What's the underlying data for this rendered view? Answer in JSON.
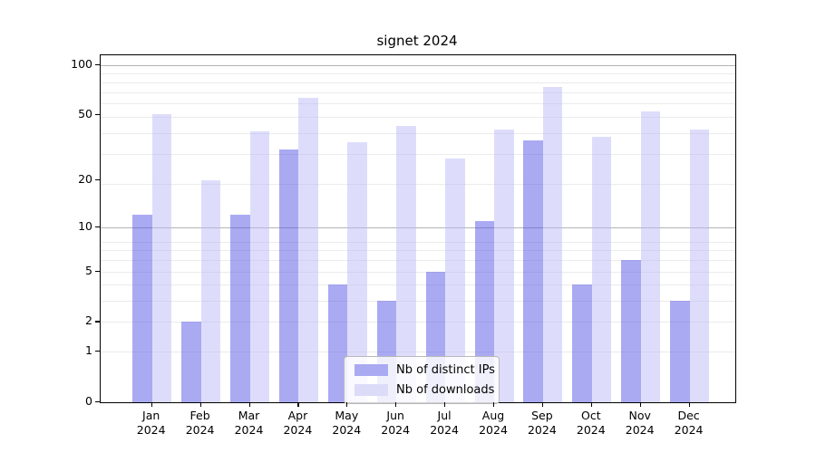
{
  "chart_data": {
    "type": "bar",
    "title": "signet 2024",
    "categories": [
      "Jan",
      "Feb",
      "Mar",
      "Apr",
      "May",
      "Jun",
      "Jul",
      "Aug",
      "Sep",
      "Oct",
      "Nov",
      "Dec"
    ],
    "category_year": "2024",
    "series": [
      {
        "name": "Nb of distinct IPs",
        "color": "rgba(85,85,230,0.5)",
        "solid_color": "#aaaaf2",
        "values": [
          12,
          2,
          12,
          31,
          4,
          3,
          5,
          11,
          35,
          4,
          6,
          3
        ]
      },
      {
        "name": "Nb of downloads",
        "color": "rgba(187,187,247,0.5)",
        "solid_color": "#dcdcf8",
        "values": [
          51,
          20,
          40,
          64,
          34,
          43,
          27,
          41,
          74,
          37,
          53,
          41
        ]
      }
    ],
    "y_axis": {
      "scale": "log1p",
      "ticks": [
        0,
        1,
        2,
        5,
        10,
        20,
        50,
        100
      ],
      "ylim": [
        0,
        114
      ]
    },
    "grid": true,
    "legend_position": "bottom-center",
    "colors": {
      "minor_gridline": "#ebebeb",
      "major_gridline": "#b3b3b3",
      "axis": "#000000",
      "background": "#ffffff"
    }
  }
}
